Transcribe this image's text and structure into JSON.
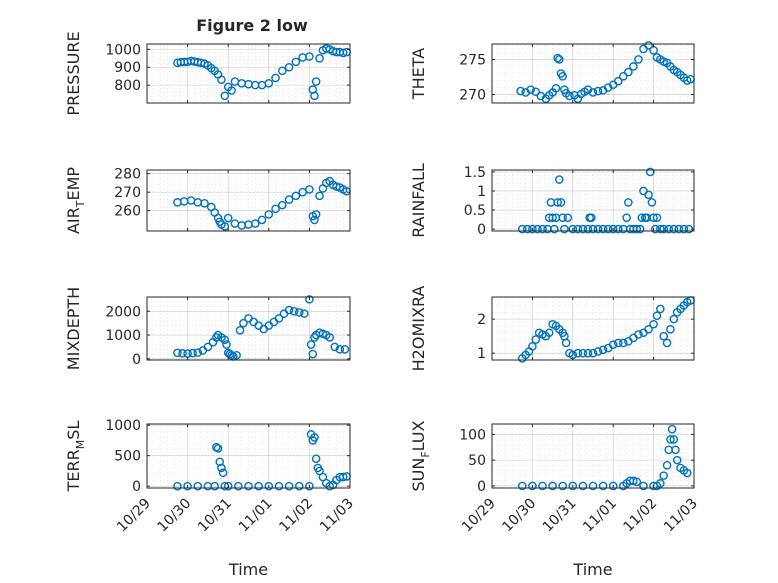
{
  "title": "Figure 2 low",
  "accent_color": "#0072BD",
  "chart_data": [
    {
      "type": "scatter",
      "ylabel": "PRESSURE",
      "xlabel": "",
      "title": "Figure 2 low",
      "xlim": [
        "10/29",
        "11/03"
      ],
      "ylim": [
        700,
        1030
      ],
      "yticks": [
        800,
        900,
        1000
      ],
      "grid": true,
      "show_xticklabels": false,
      "x": [
        "10/29 18:00",
        "10/29 20:00",
        "10/29 22:00",
        "10/30 00:00",
        "10/30 02:00",
        "10/30 04:00",
        "10/30 06:00",
        "10/30 08:00",
        "10/30 10:00",
        "10/30 12:00",
        "10/30 14:00",
        "10/30 16:00",
        "10/30 18:00",
        "10/30 20:00",
        "10/30 22:00",
        "10/31 00:00",
        "10/31 02:00",
        "10/31 04:00",
        "10/31 08:00",
        "10/31 12:00",
        "10/31 16:00",
        "10/31 20:00",
        "11/01 00:00",
        "11/01 04:00",
        "11/01 08:00",
        "11/01 12:00",
        "11/01 16:00",
        "11/01 20:00",
        "11/02 00:00",
        "11/02 02:00",
        "11/02 03:00",
        "11/02 04:00",
        "11/02 06:00",
        "11/02 08:00",
        "11/02 10:00",
        "11/02 12:00",
        "11/02 14:00",
        "11/02 16:00",
        "11/02 18:00",
        "11/02 20:00",
        "11/02 22:00"
      ],
      "y": [
        925,
        928,
        930,
        930,
        935,
        932,
        928,
        925,
        920,
        910,
        895,
        880,
        860,
        830,
        740,
        790,
        770,
        820,
        810,
        805,
        800,
        800,
        810,
        840,
        880,
        900,
        930,
        955,
        960,
        775,
        740,
        820,
        950,
        995,
        1005,
        1000,
        990,
        985,
        985,
        980,
        985
      ]
    },
    {
      "type": "scatter",
      "ylabel": "THETA",
      "xlabel": "",
      "xlim": [
        "10/29",
        "11/03"
      ],
      "ylim": [
        268.8,
        277.2
      ],
      "yticks": [
        270,
        275
      ],
      "grid": true,
      "show_xticklabels": false,
      "x": [
        "10/29 17:00",
        "10/29 20:00",
        "10/29 23:00",
        "10/30 02:00",
        "10/30 05:00",
        "10/30 08:00",
        "10/30 10:00",
        "10/30 12:00",
        "10/30 14:00",
        "10/30 15:00",
        "10/30 16:00",
        "10/30 17:00",
        "10/30 18:00",
        "10/30 19:00",
        "10/30 20:00",
        "10/30 22:00",
        "10/31 01:00",
        "10/31 03:00",
        "10/31 05:00",
        "10/31 07:00",
        "10/31 09:00",
        "10/31 12:00",
        "10/31 15:00",
        "10/31 18:00",
        "10/31 21:00",
        "11/01 00:00",
        "11/01 03:00",
        "11/01 06:00",
        "11/01 09:00",
        "11/01 12:00",
        "11/01 15:00",
        "11/01 18:00",
        "11/01 21:00",
        "11/02 00:00",
        "11/02 02:00",
        "11/02 04:00",
        "11/02 06:00",
        "11/02 08:00",
        "11/02 10:00",
        "11/02 12:00",
        "11/02 14:00",
        "11/02 16:00",
        "11/02 18:00",
        "11/02 20:00",
        "11/02 22:00"
      ],
      "y": [
        270.5,
        270.3,
        270.7,
        270.4,
        269.8,
        269.4,
        269.9,
        270.3,
        270.9,
        275.2,
        275.0,
        273.0,
        272.6,
        270.7,
        270.2,
        269.8,
        269.9,
        269.4,
        270.1,
        270.4,
        270.7,
        270.3,
        270.5,
        270.6,
        271.0,
        271.4,
        271.9,
        272.6,
        273.2,
        274.0,
        275.0,
        276.5,
        277.0,
        276.3,
        275.3,
        275.0,
        274.7,
        274.5,
        274.0,
        273.5,
        273.2,
        272.8,
        272.4,
        272.0,
        272.2
      ]
    },
    {
      "type": "scatter",
      "ylabel": "AIR_TEMP",
      "xlabel": "",
      "xlim": [
        "10/29",
        "11/03"
      ],
      "ylim": [
        249,
        282
      ],
      "yticks": [
        260,
        270,
        280
      ],
      "grid": true,
      "show_xticklabels": false,
      "x": [
        "10/29 18:00",
        "10/29 22:00",
        "10/30 02:00",
        "10/30 06:00",
        "10/30 10:00",
        "10/30 14:00",
        "10/30 16:00",
        "10/30 18:00",
        "10/30 19:00",
        "10/30 20:00",
        "10/30 22:00",
        "10/31 00:00",
        "10/31 04:00",
        "10/31 08:00",
        "10/31 12:00",
        "10/31 16:00",
        "10/31 20:00",
        "11/01 00:00",
        "11/01 04:00",
        "11/01 08:00",
        "11/01 12:00",
        "11/01 16:00",
        "11/01 20:00",
        "11/02 00:00",
        "11/02 02:00",
        "11/02 03:00",
        "11/02 04:00",
        "11/02 06:00",
        "11/02 08:00",
        "11/02 10:00",
        "11/02 12:00",
        "11/02 14:00",
        "11/02 16:00",
        "11/02 18:00",
        "11/02 20:00",
        "11/02 22:00"
      ],
      "y": [
        264.5,
        265,
        265.5,
        264.5,
        264,
        262,
        259,
        256,
        254,
        252.5,
        251.5,
        256,
        253,
        252,
        252.5,
        253,
        255,
        258,
        261,
        263,
        266,
        268,
        270,
        271.5,
        257,
        255,
        258,
        268,
        272,
        275,
        276,
        274,
        273,
        272.5,
        271.5,
        270.5
      ]
    },
    {
      "type": "scatter",
      "ylabel": "RAINFALL",
      "xlabel": "",
      "xlim": [
        "10/29",
        "11/03"
      ],
      "ylim": [
        -0.05,
        1.55
      ],
      "yticks": [
        0,
        0.5,
        1,
        1.5
      ],
      "grid": true,
      "show_xticklabels": false,
      "x": [
        "10/29 18:00",
        "10/29 21:00",
        "10/30 00:00",
        "10/30 03:00",
        "10/30 06:00",
        "10/30 09:00",
        "10/30 10:00",
        "10/30 11:00",
        "10/30 12:00",
        "10/30 13:00",
        "10/30 14:00",
        "10/30 15:00",
        "10/30 16:00",
        "10/30 17:00",
        "10/30 18:00",
        "10/30 19:00",
        "10/30 21:00",
        "10/31 00:00",
        "10/31 03:00",
        "10/31 06:00",
        "10/31 09:00",
        "10/31 10:00",
        "10/31 11:00",
        "10/31 12:00",
        "10/31 15:00",
        "10/31 18:00",
        "10/31 21:00",
        "11/01 00:00",
        "11/01 03:00",
        "11/01 06:00",
        "11/01 08:00",
        "11/01 09:00",
        "11/01 10:00",
        "11/01 12:00",
        "11/01 14:00",
        "11/01 16:00",
        "11/01 17:00",
        "11/01 18:00",
        "11/01 19:00",
        "11/01 20:00",
        "11/01 21:00",
        "11/01 22:00",
        "11/01 23:00",
        "11/02 00:00",
        "11/02 01:00",
        "11/02 02:00",
        "11/02 04:00",
        "11/02 06:00",
        "11/02 09:00",
        "11/02 12:00",
        "11/02 15:00",
        "11/02 18:00",
        "11/02 21:00"
      ],
      "y": [
        0,
        0,
        0,
        0,
        0,
        0,
        0.3,
        0.7,
        0.3,
        0,
        0.3,
        0.7,
        1.3,
        0.7,
        0.3,
        0,
        0.3,
        0,
        0,
        0,
        0,
        0.3,
        0.3,
        0,
        0,
        0,
        0,
        0,
        0,
        0,
        0.3,
        0.7,
        0,
        0,
        0,
        0,
        0.3,
        1.0,
        0.3,
        0.3,
        0.9,
        1.5,
        0.7,
        0.3,
        0,
        0.3,
        0,
        0,
        0,
        0,
        0,
        0,
        0
      ]
    },
    {
      "type": "scatter",
      "ylabel": "MIXDEPTH",
      "xlabel": "",
      "xlim": [
        "10/29",
        "11/03"
      ],
      "ylim": [
        -50,
        2600
      ],
      "yticks": [
        0,
        1000,
        2000
      ],
      "grid": true,
      "show_xticklabels": false,
      "x": [
        "10/29 18:00",
        "10/29 21:00",
        "10/30 00:00",
        "10/30 03:00",
        "10/30 06:00",
        "10/30 09:00",
        "10/30 12:00",
        "10/30 15:00",
        "10/30 17:00",
        "10/30 18:00",
        "10/30 20:00",
        "10/30 22:00",
        "10/30 23:00",
        "10/31 00:00",
        "10/31 01:00",
        "10/31 02:00",
        "10/31 03:00",
        "10/31 05:00",
        "10/31 07:00",
        "10/31 09:00",
        "10/31 12:00",
        "10/31 15:00",
        "10/31 18:00",
        "10/31 21:00",
        "11/01 00:00",
        "11/01 03:00",
        "11/01 06:00",
        "11/01 09:00",
        "11/01 12:00",
        "11/01 15:00",
        "11/01 18:00",
        "11/01 21:00",
        "11/02 00:00",
        "11/02 01:00",
        "11/02 02:00",
        "11/02 03:00",
        "11/02 04:00",
        "11/02 06:00",
        "11/02 08:00",
        "11/02 10:00",
        "11/02 12:00",
        "11/02 15:00",
        "11/02 18:00",
        "11/02 21:00"
      ],
      "y": [
        250,
        230,
        220,
        240,
        260,
        350,
        500,
        700,
        900,
        1000,
        900,
        800,
        600,
        250,
        200,
        150,
        100,
        150,
        1200,
        1500,
        1700,
        1550,
        1400,
        1250,
        1400,
        1550,
        1700,
        1900,
        2050,
        2000,
        1950,
        1900,
        2500,
        600,
        200,
        900,
        1000,
        1100,
        1050,
        1000,
        900,
        500,
        400,
        400
      ]
    },
    {
      "type": "scatter",
      "ylabel": "H2OMIXRA",
      "xlabel": "",
      "xlim": [
        "10/29",
        "11/03"
      ],
      "ylim": [
        0.8,
        2.65
      ],
      "yticks": [
        1,
        2
      ],
      "grid": true,
      "show_xticklabels": false,
      "x": [
        "10/29 18:00",
        "10/29 20:00",
        "10/29 22:00",
        "10/30 00:00",
        "10/30 02:00",
        "10/30 04:00",
        "10/30 06:00",
        "10/30 08:00",
        "10/30 10:00",
        "10/30 12:00",
        "10/30 14:00",
        "10/30 16:00",
        "10/30 18:00",
        "10/30 19:00",
        "10/30 20:00",
        "10/30 22:00",
        "10/31 00:00",
        "10/31 03:00",
        "10/31 06:00",
        "10/31 09:00",
        "10/31 12:00",
        "10/31 15:00",
        "10/31 18:00",
        "10/31 21:00",
        "11/01 00:00",
        "11/01 03:00",
        "11/01 06:00",
        "11/01 09:00",
        "11/01 12:00",
        "11/01 15:00",
        "11/01 18:00",
        "11/01 21:00",
        "11/02 00:00",
        "11/02 02:00",
        "11/02 04:00",
        "11/02 06:00",
        "11/02 08:00",
        "11/02 10:00",
        "11/02 12:00",
        "11/02 14:00",
        "11/02 16:00",
        "11/02 18:00",
        "11/02 20:00",
        "11/02 22:00"
      ],
      "y": [
        0.85,
        0.95,
        1.05,
        1.2,
        1.4,
        1.6,
        1.55,
        1.5,
        1.6,
        1.85,
        1.8,
        1.7,
        1.6,
        1.5,
        1.3,
        1.0,
        0.95,
        1.0,
        1.0,
        1.0,
        1.0,
        1.05,
        1.1,
        1.15,
        1.25,
        1.3,
        1.3,
        1.35,
        1.45,
        1.55,
        1.6,
        1.7,
        1.85,
        2.1,
        2.3,
        1.5,
        1.3,
        1.7,
        2.0,
        2.2,
        2.3,
        2.4,
        2.5,
        2.55
      ]
    },
    {
      "type": "scatter",
      "ylabel": "TERR_MSL",
      "xlabel": "Time",
      "xlim": [
        "10/29",
        "11/03"
      ],
      "ylim": [
        -30,
        1020
      ],
      "yticks": [
        0,
        500,
        1000
      ],
      "xticks": [
        "10/29",
        "10/30",
        "10/31",
        "11/01",
        "11/02",
        "11/03"
      ],
      "grid": true,
      "show_xticklabels": true,
      "x": [
        "10/29 18:00",
        "10/30 00:00",
        "10/30 06:00",
        "10/30 12:00",
        "10/30 16:00",
        "10/30 17:00",
        "10/30 18:00",
        "10/30 19:00",
        "10/30 20:00",
        "10/30 21:00",
        "10/30 22:00",
        "10/31 00:00",
        "10/31 06:00",
        "10/31 12:00",
        "10/31 18:00",
        "11/01 00:00",
        "11/01 06:00",
        "11/01 12:00",
        "11/01 18:00",
        "11/02 00:00",
        "11/02 01:00",
        "11/02 02:00",
        "11/02 03:00",
        "11/02 04:00",
        "11/02 05:00",
        "11/02 06:00",
        "11/02 08:00",
        "11/02 10:00",
        "11/02 12:00",
        "11/02 14:00",
        "11/02 16:00",
        "11/02 18:00",
        "11/02 20:00",
        "11/02 22:00"
      ],
      "y": [
        0,
        0,
        0,
        0,
        0,
        640,
        620,
        400,
        300,
        220,
        0,
        0,
        0,
        0,
        0,
        0,
        0,
        0,
        0,
        0,
        850,
        750,
        800,
        450,
        300,
        250,
        150,
        50,
        0,
        20,
        100,
        150,
        150,
        160
      ]
    },
    {
      "type": "scatter",
      "ylabel": "SUN_FLUX",
      "xlabel": "Time",
      "xlim": [
        "10/29",
        "11/03"
      ],
      "ylim": [
        -4,
        120
      ],
      "yticks": [
        0,
        50,
        100
      ],
      "xticks": [
        "10/29",
        "10/30",
        "10/31",
        "11/01",
        "11/02",
        "11/03"
      ],
      "grid": true,
      "show_xticklabels": true,
      "x": [
        "10/29 18:00",
        "10/30 00:00",
        "10/30 06:00",
        "10/30 12:00",
        "10/30 18:00",
        "10/31 00:00",
        "10/31 06:00",
        "10/31 12:00",
        "10/31 18:00",
        "11/01 00:00",
        "11/01 06:00",
        "11/01 08:00",
        "11/01 10:00",
        "11/01 12:00",
        "11/01 14:00",
        "11/01 18:00",
        "11/02 00:00",
        "11/02 02:00",
        "11/02 04:00",
        "11/02 06:00",
        "11/02 08:00",
        "11/02 09:00",
        "11/02 10:00",
        "11/02 11:00",
        "11/02 12:00",
        "11/02 13:00",
        "11/02 14:00",
        "11/02 16:00",
        "11/02 18:00",
        "11/02 20:00"
      ],
      "y": [
        0,
        0,
        0,
        0,
        0,
        0,
        0,
        0,
        0,
        0,
        0,
        5,
        10,
        10,
        8,
        0,
        0,
        0,
        5,
        20,
        40,
        70,
        90,
        110,
        90,
        70,
        50,
        35,
        30,
        25
      ]
    }
  ]
}
